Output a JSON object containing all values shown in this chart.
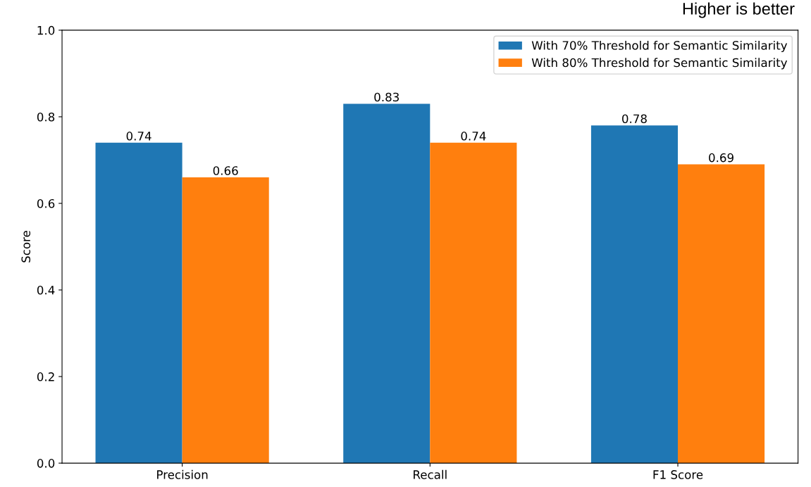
{
  "chart_data": {
    "type": "bar",
    "ylabel": "Score",
    "categories": [
      "Precision",
      "Recall",
      "F1 Score"
    ],
    "series": [
      {
        "name": "With 70% Threshold for Semantic Similarity",
        "color": "#1f77b4",
        "values": [
          0.74,
          0.83,
          0.78
        ]
      },
      {
        "name": "With 80% Threshold for Semantic Similarity",
        "color": "#ff7f0e",
        "values": [
          0.66,
          0.74,
          0.69
        ]
      }
    ],
    "ylim": [
      0,
      1.0
    ],
    "yticks": [
      {
        "value": 0,
        "label": "0.0"
      },
      0.2,
      0.4,
      0.6,
      0.8,
      {
        "value": 1.0,
        "label": "1.0"
      }
    ],
    "data_labels": true,
    "legend": "top right",
    "grid": false,
    "annotations": [
      "Higher is better"
    ]
  }
}
